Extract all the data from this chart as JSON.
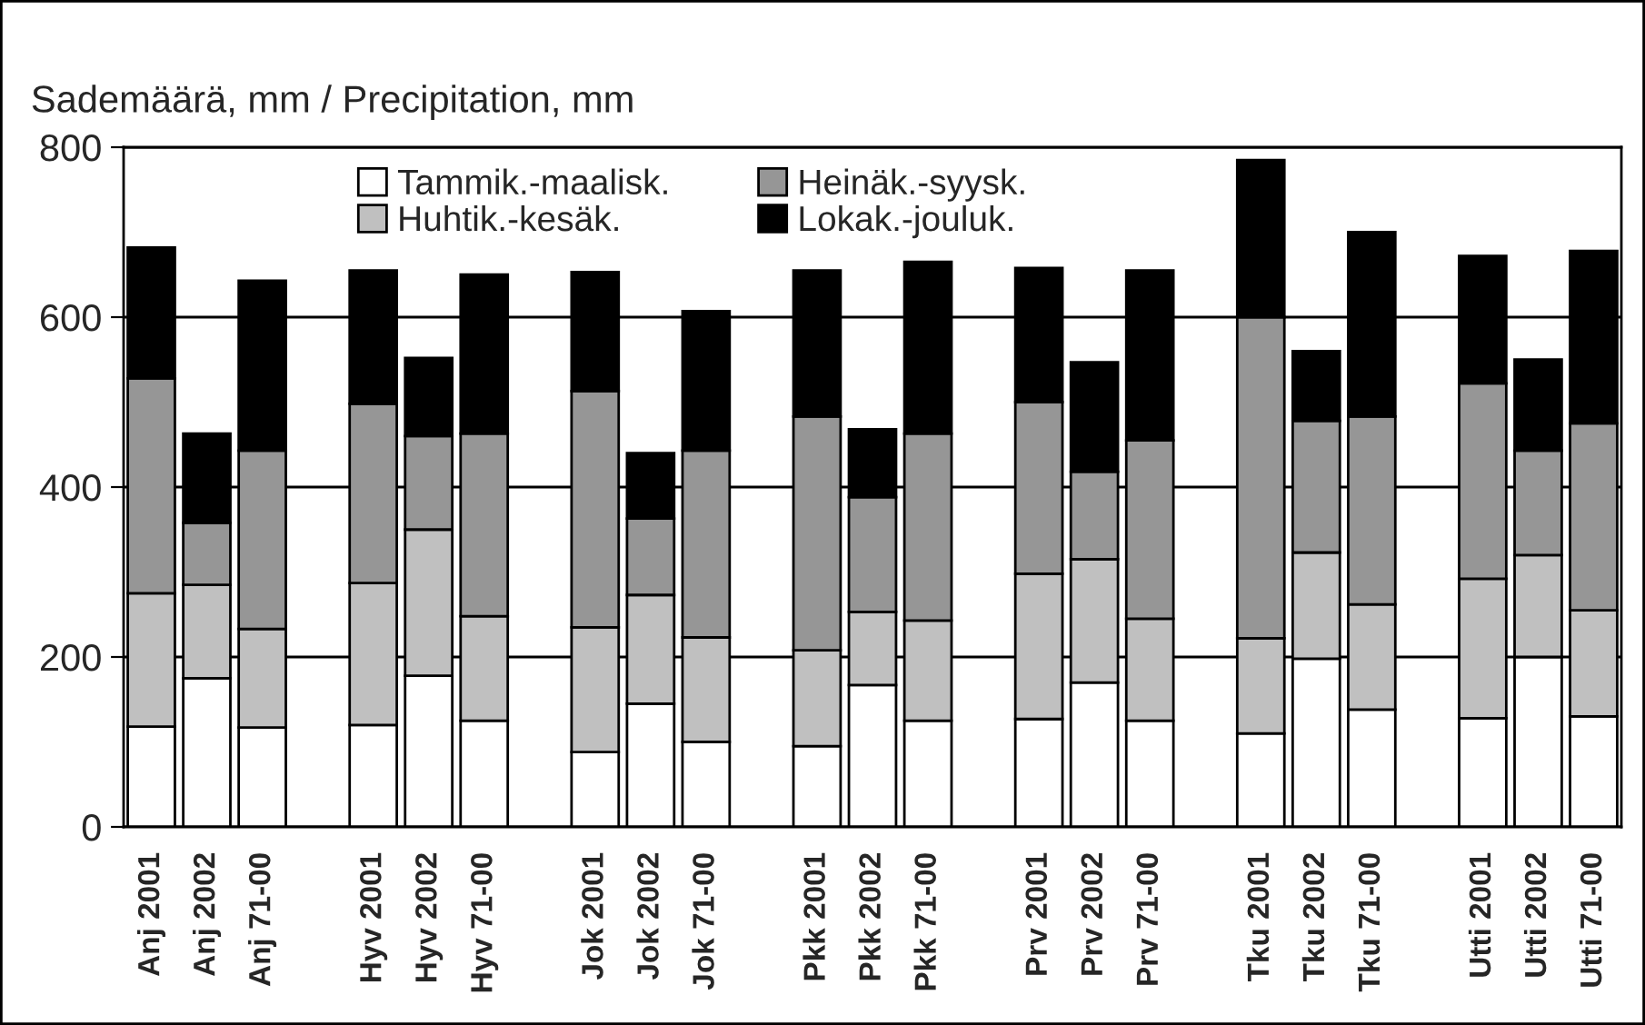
{
  "chart_data": {
    "type": "bar",
    "stacked": true,
    "ylabel": "Sademäärä, mm / Precipitation, mm",
    "categories": [
      "Anj 2001",
      "Anj 2002",
      "Anj 71-00",
      null,
      "Hyv 2001",
      "Hyv 2002",
      "Hyv 71-00",
      null,
      "Jok 2001",
      "Jok 2002",
      "Jok 71-00",
      null,
      "Pkk 2001",
      "Pkk 2002",
      "Pkk 71-00",
      null,
      "Prv 2001",
      "Prv 2002",
      "Prv 71-00",
      null,
      "Tku 2001",
      "Tku 2002",
      "Tku 71-00",
      null,
      "Utti 2001",
      "Utti 2002",
      "Utti 71-00"
    ],
    "series": [
      {
        "name": "Tammik.-maalisk.",
        "color": "#ffffff",
        "values": [
          118,
          175,
          117,
          null,
          120,
          178,
          125,
          null,
          88,
          145,
          100,
          null,
          95,
          167,
          125,
          null,
          127,
          170,
          125,
          null,
          110,
          198,
          138,
          null,
          128,
          200,
          130
        ]
      },
      {
        "name": "Huhtik.-kesäk.",
        "color": "#c0c0c0",
        "values": [
          157,
          110,
          116,
          null,
          167,
          172,
          123,
          null,
          147,
          128,
          123,
          null,
          113,
          86,
          118,
          null,
          171,
          145,
          120,
          null,
          112,
          125,
          124,
          null,
          164,
          120,
          125
        ]
      },
      {
        "name": "Heinäk.-syysk.",
        "color": "#969696",
        "values": [
          253,
          73,
          210,
          null,
          211,
          110,
          215,
          null,
          278,
          90,
          220,
          null,
          275,
          135,
          220,
          null,
          202,
          103,
          210,
          null,
          378,
          155,
          221,
          null,
          230,
          123,
          220
        ]
      },
      {
        "name": "Lokak.-jouluk.",
        "color": "#000000",
        "values": [
          154,
          105,
          200,
          null,
          157,
          92,
          187,
          null,
          140,
          77,
          164,
          null,
          172,
          80,
          202,
          null,
          158,
          129,
          200,
          null,
          185,
          82,
          217,
          null,
          150,
          107,
          203
        ]
      }
    ],
    "ylim": [
      0,
      800
    ],
    "yticks": [
      0,
      200,
      400,
      600,
      800
    ],
    "grid": "y",
    "legend": "top"
  }
}
